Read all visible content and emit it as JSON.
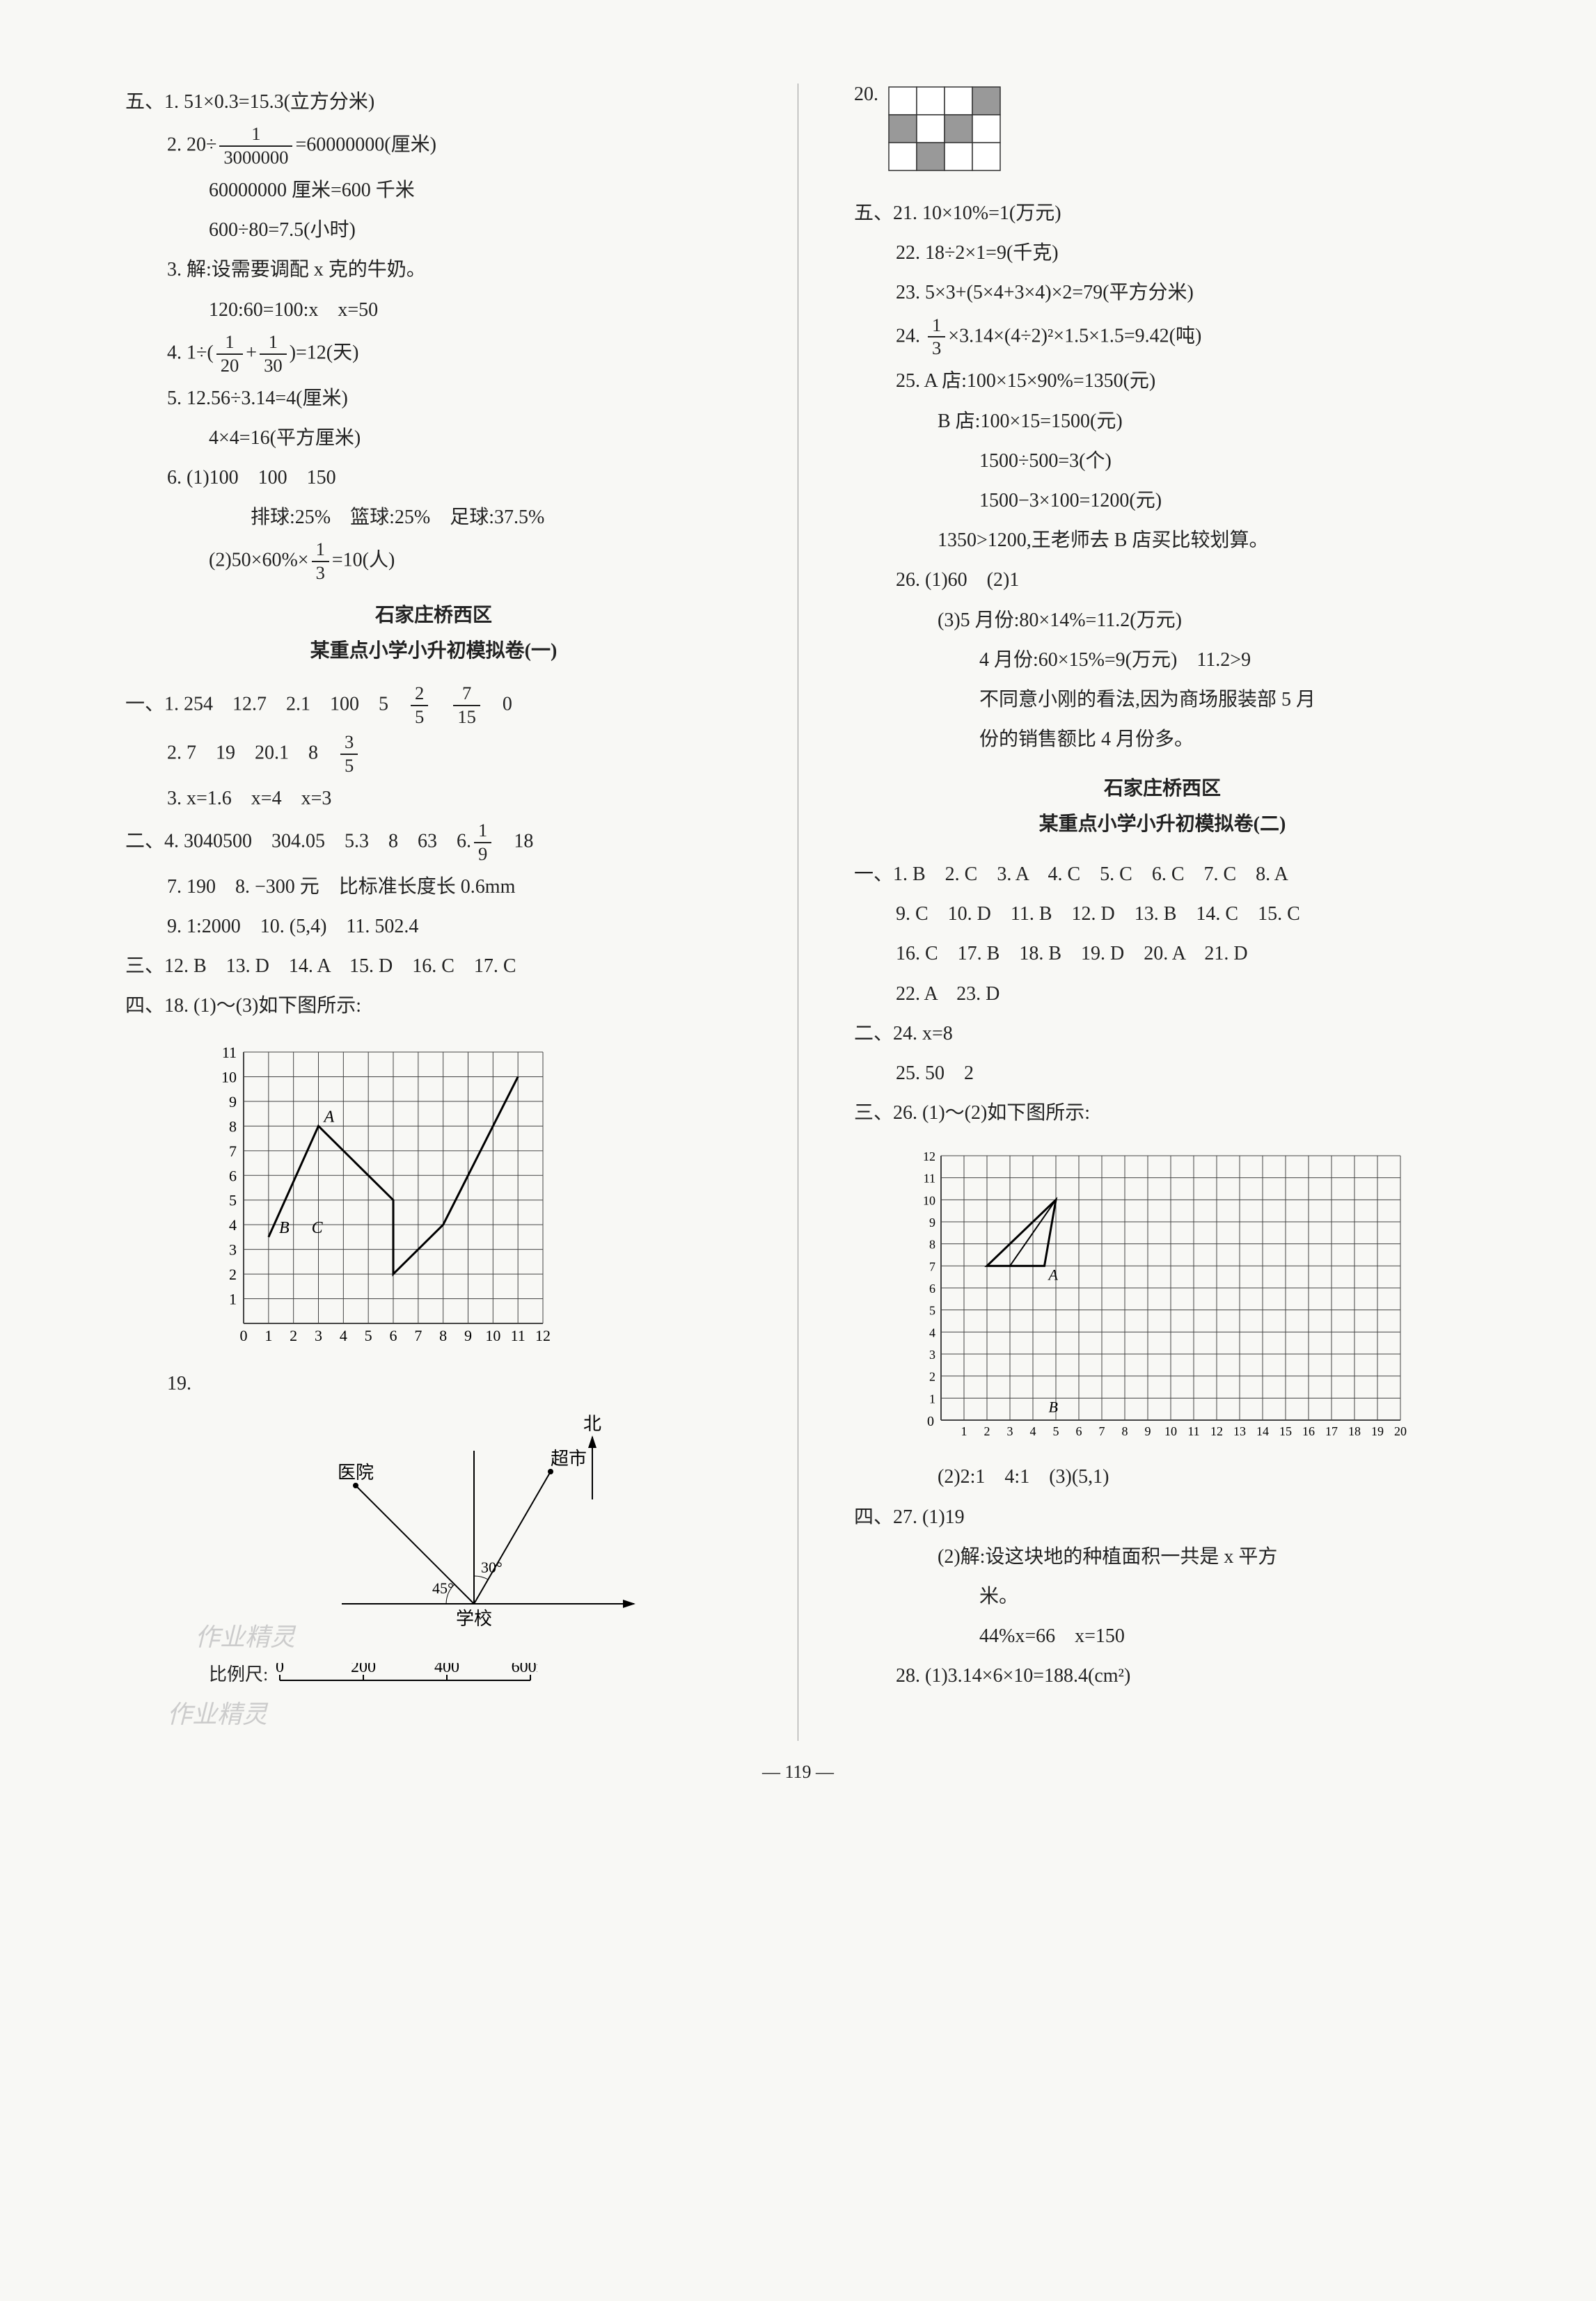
{
  "left": {
    "section5": {
      "lines": [
        "五、1. 51×0.3=15.3(立方分米)",
        "2. 20÷",
        "=60000000(厘米)",
        "60000000 厘米=600 千米",
        "600÷80=7.5(小时)",
        "3. 解:设需要调配 x 克的牛奶。",
        "120:60=100:x　x=50",
        "4. 1÷(",
        "+",
        ")=12(天)",
        "5. 12.56÷3.14=4(厘米)",
        "4×4=16(平方厘米)",
        "6. (1)100　100　150",
        "排球:25%　篮球:25%　足球:37.5%",
        "(2)50×60%×",
        "=10(人)"
      ],
      "fractions": {
        "f1": {
          "num": "1",
          "den": "3000000"
        },
        "f20": {
          "num": "1",
          "den": "20"
        },
        "f30": {
          "num": "1",
          "den": "30"
        },
        "f13": {
          "num": "1",
          "den": "3"
        }
      }
    },
    "title1": {
      "line1": "石家庄桥西区",
      "line2": "某重点小学小升初模拟卷(一)"
    },
    "section1": {
      "lines": [
        "一、1. 254　12.7　2.1　100　5　",
        "　",
        "　0",
        "2. 7　19　20.1　8　",
        "3. x=1.6　x=4　x=3"
      ],
      "fractions": {
        "f25": {
          "num": "2",
          "den": "5"
        },
        "f715": {
          "num": "7",
          "den": "15"
        },
        "f35": {
          "num": "3",
          "den": "5"
        }
      }
    },
    "section2": {
      "lines": [
        "二、4. 3040500　304.05　5.3　8　63　6.",
        "　18",
        "7. 190　8. −300 元　比标准长度长 0.6mm",
        "9. 1:2000　10. (5,4)　11. 502.4"
      ],
      "fractions": {
        "f19": {
          "num": "1",
          "den": "9"
        }
      }
    },
    "section3": {
      "line": "三、12. B　13. D　14. A　15. D　16. C　17. C"
    },
    "section4": {
      "header": "四、18. (1)～(3)如下图所示:",
      "graph": {
        "xmax": 12,
        "ymax": 11,
        "xlabels": [
          "0",
          "1",
          "2",
          "3",
          "4",
          "5",
          "6",
          "7",
          "8",
          "9",
          "10",
          "11",
          "12"
        ],
        "ylabels": [
          "1",
          "2",
          "3",
          "4",
          "5",
          "6",
          "7",
          "8",
          "9",
          "10",
          "11"
        ],
        "line1": [
          [
            1,
            3.5
          ],
          [
            3,
            8
          ],
          [
            6,
            5
          ],
          [
            6,
            2
          ],
          [
            8,
            4
          ],
          [
            11,
            10
          ]
        ],
        "markers": {
          "A": [
            3,
            8
          ],
          "B": [
            1.2,
            3.5
          ],
          "C": [
            2.5,
            3.5
          ]
        },
        "grid_color": "#444",
        "bg": "#fff"
      },
      "item19_label": "19.",
      "diagram": {
        "labels": {
          "north": "北",
          "hospital": "医院",
          "market": "超市",
          "school": "学校",
          "angle30": "30°",
          "angle45": "45°"
        },
        "scale_label": "比例尺:",
        "scale_values": [
          "0",
          "200",
          "400",
          "600m"
        ]
      }
    },
    "watermark1": "作业精灵",
    "watermark2": "作业精灵"
  },
  "right": {
    "item20_label": "20.",
    "grid20": {
      "rows": 3,
      "cols": 4,
      "shaded": [
        [
          0,
          3
        ],
        [
          1,
          0
        ],
        [
          1,
          2
        ],
        [
          2,
          1
        ]
      ],
      "cell_size": 40,
      "stroke": "#333",
      "fill": "#999",
      "bg": "#fff"
    },
    "section5r": {
      "lines": [
        "五、21. 10×10%=1(万元)",
        "22. 18÷2×1=9(千克)",
        "23. 5×3+(5×4+3×4)×2=79(平方分米)",
        "24. ",
        "×3.14×(4÷2)²×1.5×1.5=9.42(吨)",
        "25. A 店:100×15×90%=1350(元)",
        "B 店:100×15=1500(元)",
        "1500÷500=3(个)",
        "1500−3×100=1200(元)",
        "1350>1200,王老师去 B 店买比较划算。",
        "26. (1)60　(2)1",
        "(3)5 月份:80×14%=11.2(万元)",
        "4 月份:60×15%=9(万元)　11.2>9",
        "不同意小刚的看法,因为商场服装部 5 月",
        "份的销售额比 4 月份多。"
      ],
      "fractions": {
        "f13": {
          "num": "1",
          "den": "3"
        }
      }
    },
    "title2": {
      "line1": "石家庄桥西区",
      "line2": "某重点小学小升初模拟卷(二)"
    },
    "section1r": {
      "lines": [
        "一、1. B　2. C　3. A　4. C　5. C　6. C　7. C　8. A",
        "9. C　10. D　11. B　12. D　13. B　14. C　15. C",
        "16. C　17. B　18. B　19. D　20. A　21. D",
        "22. A　23. D"
      ]
    },
    "section2r": {
      "lines": [
        "二、24. x=8",
        "25. 50　2"
      ]
    },
    "section3r": {
      "header": "三、26. (1)～(2)如下图所示:",
      "graph": {
        "xmax": 20,
        "ymax": 12,
        "ylabels": [
          "1",
          "2",
          "3",
          "4",
          "5",
          "6",
          "7",
          "8",
          "9",
          "10",
          "11",
          "12"
        ],
        "xlabels": [
          "1",
          "2",
          "3",
          "4",
          "5",
          "6",
          "7",
          "8",
          "9",
          "10",
          "11",
          "12",
          "13",
          "14",
          "15",
          "16",
          "17",
          "18",
          "19",
          "20"
        ],
        "triangle1": [
          [
            2,
            7
          ],
          [
            5,
            10
          ],
          [
            4.5,
            7
          ]
        ],
        "triangle2": [
          [
            3,
            7
          ],
          [
            4.5,
            7
          ],
          [
            5,
            10
          ]
        ],
        "markers": {
          "A": [
            4.5,
            7
          ],
          "B": [
            4.5,
            1
          ]
        },
        "grid_color": "#444",
        "bg": "#fff"
      },
      "line_after": "(2)2:1　4:1　(3)(5,1)"
    },
    "section4r": {
      "lines": [
        "四、27. (1)19",
        "(2)解:设这块地的种植面积一共是 x 平方",
        "米。",
        "44%x=66　x=150",
        "28. (1)3.14×6×10=188.4(cm²)"
      ]
    }
  },
  "page_num": "— 119 —",
  "colors": {
    "text": "#222",
    "border": "#333"
  }
}
